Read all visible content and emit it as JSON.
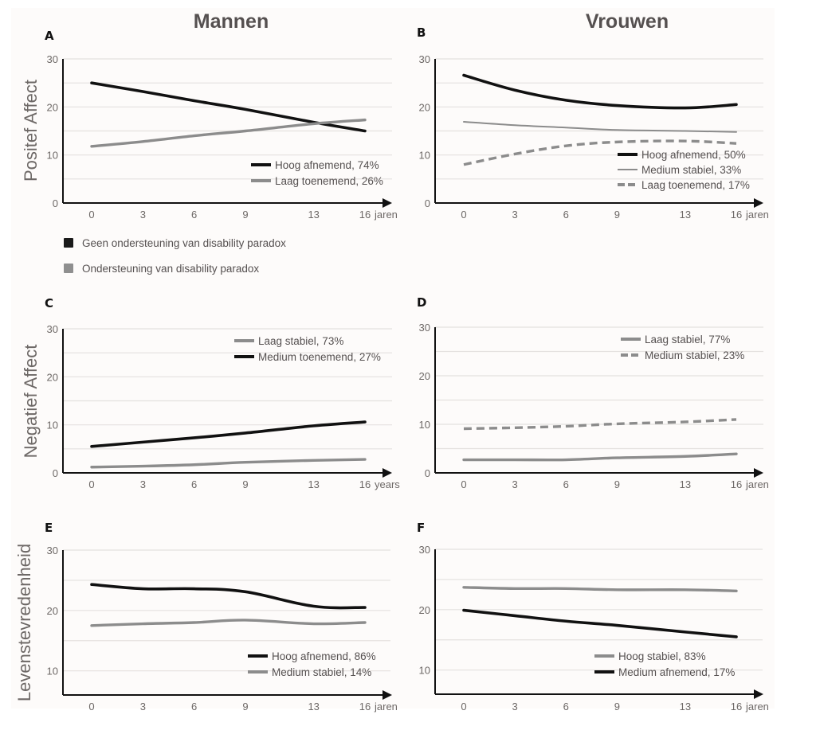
{
  "column_titles": {
    "left": "Mannen",
    "right": "Vrouwen"
  },
  "row_ylabels": [
    "Positef Affect",
    "Negatief Affect",
    "Levenstevredenheid"
  ],
  "colors": {
    "black": "#111111",
    "gray": "#8c8c8c"
  },
  "support_legend": [
    {
      "label": "Geen ondersteuning van disability paradox",
      "color": "#1a1a1a"
    },
    {
      "label": "Ondersteuning van disability paradox",
      "color": "#8f8f8f"
    }
  ],
  "chart_data": [
    {
      "id": "A",
      "type": "line",
      "title": "A",
      "xlabel": "jaren",
      "ylabel": "Positef Affect",
      "x": [
        0,
        3,
        6,
        9,
        13,
        16
      ],
      "x_tick_labels": [
        "0",
        "3",
        "6",
        "9",
        "13",
        "16"
      ],
      "ylim": [
        0,
        30
      ],
      "y_ticks": [
        0,
        10,
        20,
        30
      ],
      "grid_step": 5,
      "grid": true,
      "legend_position": "bottom-right",
      "series": [
        {
          "name": "Hoog afnemend, 74%",
          "color": "#111111",
          "style": "solid",
          "weight": "thick",
          "values": [
            25.0,
            23.2,
            21.3,
            19.5,
            16.8,
            15.0
          ]
        },
        {
          "name": "Laag toenemend, 26%",
          "color": "#8c8c8c",
          "style": "solid",
          "weight": "thick",
          "values": [
            11.8,
            12.8,
            14.0,
            15.0,
            16.5,
            17.3
          ]
        }
      ]
    },
    {
      "id": "B",
      "type": "line",
      "title": "B",
      "xlabel": "jaren",
      "ylabel": "",
      "x": [
        0,
        3,
        6,
        9,
        13,
        16
      ],
      "x_tick_labels": [
        "0",
        "3",
        "6",
        "9",
        "13",
        "16"
      ],
      "ylim": [
        0,
        30
      ],
      "y_ticks": [
        0,
        10,
        20,
        30
      ],
      "grid_step": 5,
      "grid": true,
      "legend_position": "bottom-right",
      "series": [
        {
          "name": "Hoog afnemend, 50%",
          "color": "#111111",
          "style": "solid",
          "weight": "thick",
          "values": [
            26.6,
            23.5,
            21.4,
            20.3,
            19.8,
            20.5
          ]
        },
        {
          "name": "Medium stabiel, 33%",
          "color": "#8c8c8c",
          "style": "solid",
          "weight": "thin",
          "values": [
            16.9,
            16.2,
            15.7,
            15.2,
            15.0,
            14.8
          ]
        },
        {
          "name": "Laag toenemend, 17%",
          "color": "#8c8c8c",
          "style": "dashed",
          "weight": "thick",
          "values": [
            8.0,
            10.2,
            11.9,
            12.7,
            12.9,
            12.4
          ]
        }
      ]
    },
    {
      "id": "C",
      "type": "line",
      "title": "C",
      "xlabel": "years",
      "ylabel": "Negatief Affect",
      "x": [
        0,
        3,
        6,
        9,
        13,
        16
      ],
      "x_tick_labels": [
        "0",
        "3",
        "6",
        "9",
        "13",
        "16"
      ],
      "ylim": [
        0,
        30
      ],
      "y_ticks": [
        0,
        10,
        20,
        30
      ],
      "grid_step": 5,
      "grid": true,
      "legend_position": "top-right",
      "series": [
        {
          "name": "Laag stabiel, 73%",
          "color": "#8c8c8c",
          "style": "solid",
          "weight": "thick",
          "values": [
            1.2,
            1.4,
            1.7,
            2.2,
            2.6,
            2.8
          ]
        },
        {
          "name": "Medium toenemend, 27%",
          "color": "#111111",
          "style": "solid",
          "weight": "thick",
          "values": [
            5.5,
            6.4,
            7.3,
            8.3,
            9.8,
            10.6
          ]
        }
      ]
    },
    {
      "id": "D",
      "type": "line",
      "title": "D",
      "xlabel": "jaren",
      "ylabel": "",
      "x": [
        0,
        3,
        6,
        9,
        13,
        16
      ],
      "x_tick_labels": [
        "0",
        "3",
        "6",
        "9",
        "13",
        "16"
      ],
      "ylim": [
        0,
        30
      ],
      "y_ticks": [
        0,
        10,
        20,
        30
      ],
      "grid_step": 5,
      "grid": true,
      "legend_position": "top-right",
      "series": [
        {
          "name": "Laag stabiel, 77%",
          "color": "#8c8c8c",
          "style": "solid",
          "weight": "thick",
          "values": [
            2.7,
            2.7,
            2.7,
            3.1,
            3.4,
            3.9
          ]
        },
        {
          "name": "Medium stabiel, 23%",
          "color": "#8c8c8c",
          "style": "dashed",
          "weight": "thick",
          "values": [
            9.1,
            9.3,
            9.6,
            10.1,
            10.5,
            11.0
          ]
        }
      ]
    },
    {
      "id": "E",
      "type": "line",
      "title": "E",
      "xlabel": "jaren",
      "ylabel": "Levenstevredenheid",
      "x": [
        0,
        3,
        6,
        9,
        13,
        16
      ],
      "x_tick_labels": [
        "0",
        "3",
        "6",
        "9",
        "13",
        "16"
      ],
      "ylim": [
        6,
        30
      ],
      "y_ticks": [
        10,
        20,
        30
      ],
      "grid_step": 5,
      "grid": true,
      "legend_position": "bottom-right",
      "series": [
        {
          "name": "Hoog afnemend, 86%",
          "color": "#111111",
          "style": "solid",
          "weight": "thick",
          "values": [
            24.3,
            23.6,
            23.6,
            23.1,
            20.7,
            20.5
          ]
        },
        {
          "name": "Medium stabiel, 14%",
          "color": "#8c8c8c",
          "style": "solid",
          "weight": "thick",
          "values": [
            17.5,
            17.8,
            18.0,
            18.4,
            17.8,
            18.0
          ]
        }
      ]
    },
    {
      "id": "F",
      "type": "line",
      "title": "F",
      "xlabel": "jaren",
      "ylabel": "",
      "x": [
        0,
        3,
        6,
        9,
        13,
        16
      ],
      "x_tick_labels": [
        "0",
        "3",
        "6",
        "9",
        "13",
        "16"
      ],
      "ylim": [
        6,
        30
      ],
      "y_ticks": [
        10,
        20,
        30
      ],
      "grid_step": 5,
      "grid": true,
      "legend_position": "bottom-right",
      "series": [
        {
          "name": "Hoog stabiel, 83%",
          "color": "#8c8c8c",
          "style": "solid",
          "weight": "thick",
          "values": [
            23.7,
            23.5,
            23.5,
            23.3,
            23.3,
            23.1
          ]
        },
        {
          "name": "Medium afnemend, 17%",
          "color": "#111111",
          "style": "solid",
          "weight": "thick",
          "values": [
            19.9,
            19.0,
            18.1,
            17.4,
            16.3,
            15.5
          ]
        }
      ]
    }
  ]
}
